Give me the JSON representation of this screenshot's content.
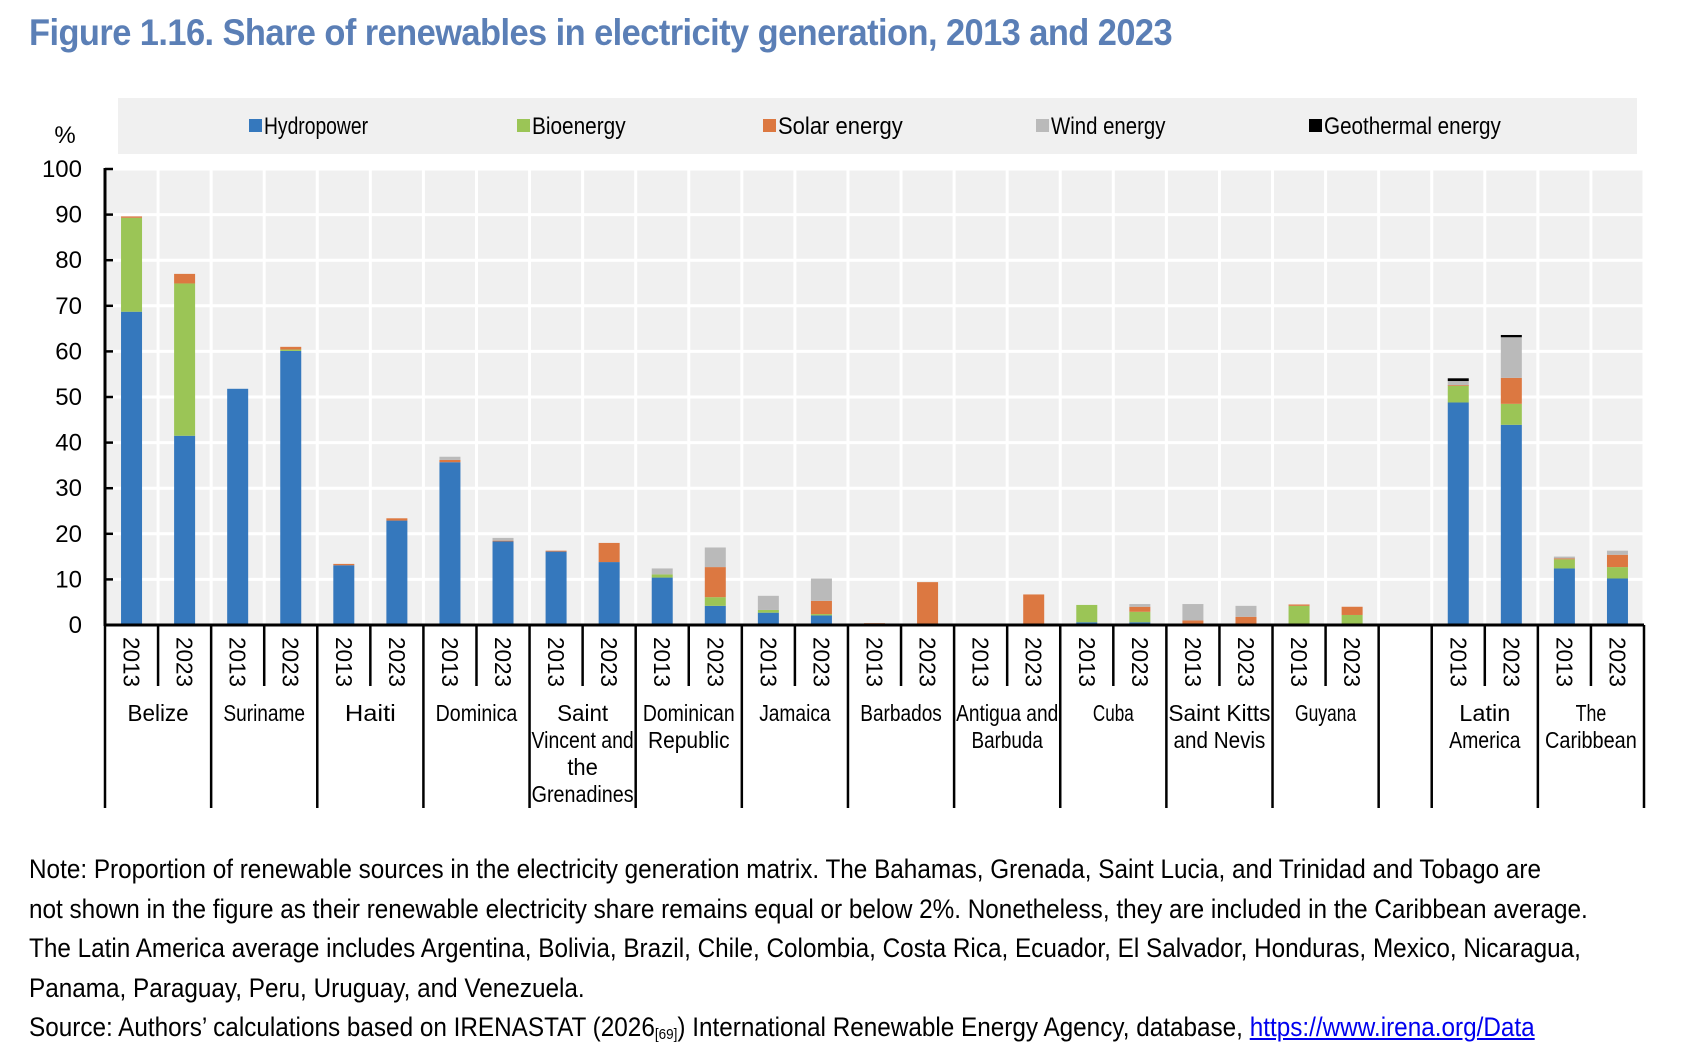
{
  "title": "Figure 1.16. Share of renewables in electricity generation, 2013 and 2023",
  "notes": {
    "line1": "Note: Proportion of renewable sources in the electricity generation matrix. The Bahamas, Grenada, Saint Lucia, and Trinidad and Tobago are",
    "line2": "not shown in the figure as their renewable electricity share remains equal or below 2%. Nonetheless, they are included in the Caribbean average.",
    "line3": "The Latin America average includes Argentina, Bolivia, Brazil, Chile, Colombia, Costa Rica, Ecuador, El Salvador, Honduras, Mexico, Nicaragua,",
    "line4": "Panama, Paraguay, Peru, Uruguay, and Venezuela.",
    "source_prefix": "Source: Authors’ calculations based on IRENASTAT (2026",
    "source_ref": "[69]",
    "source_middle": ") International Renewable Energy Agency, database, ",
    "source_link": "https://www.irena.org/Data"
  },
  "chart_data": {
    "type": "bar",
    "stacked": true,
    "title": "Figure 1.16. Share of renewables in electricity generation, 2013 and 2023",
    "ylabel": "%",
    "xlabel": "",
    "ylim": [
      0,
      100
    ],
    "yticks": [
      0,
      10,
      20,
      30,
      40,
      50,
      60,
      70,
      80,
      90,
      100
    ],
    "grid": true,
    "legend_position": "top",
    "series": [
      {
        "name": "Hydropower",
        "color": "#3578bd"
      },
      {
        "name": "Bioenergy",
        "color": "#9bc556"
      },
      {
        "name": "Solar energy",
        "color": "#dc7841"
      },
      {
        "name": "Wind energy",
        "color": "#bababa"
      },
      {
        "name": "Geothermal energy",
        "color": "#000000"
      }
    ],
    "groups": [
      {
        "label": [
          "Belize"
        ],
        "bars": [
          {
            "year": "2013",
            "values": [
              68.7,
              20.6,
              0.3,
              0,
              0
            ]
          },
          {
            "year": "2023",
            "values": [
              41.5,
              33.4,
              2.1,
              0,
              0
            ]
          }
        ]
      },
      {
        "label": [
          "Suriname"
        ],
        "bars": [
          {
            "year": "2013",
            "values": [
              51.8,
              0,
              0,
              0,
              0
            ]
          },
          {
            "year": "2023",
            "values": [
              60.1,
              0.3,
              0.6,
              0,
              0
            ]
          }
        ]
      },
      {
        "label": [
          "Haiti"
        ],
        "bars": [
          {
            "year": "2013",
            "values": [
              13.1,
              0,
              0.3,
              0,
              0
            ]
          },
          {
            "year": "2023",
            "values": [
              22.9,
              0,
              0.5,
              0,
              0
            ]
          }
        ]
      },
      {
        "label": [
          "Dominica"
        ],
        "bars": [
          {
            "year": "2013",
            "values": [
              35.7,
              0,
              0.5,
              0.7,
              0
            ]
          },
          {
            "year": "2023",
            "values": [
              18.4,
              0,
              0.1,
              0.6,
              0
            ]
          }
        ]
      },
      {
        "label": [
          "Saint",
          "Vincent and",
          "the",
          "Grenadines"
        ],
        "bars": [
          {
            "year": "2013",
            "values": [
              16.1,
              0,
              0.2,
              0,
              0
            ]
          },
          {
            "year": "2023",
            "values": [
              13.8,
              0,
              4.2,
              0,
              0
            ]
          }
        ]
      },
      {
        "label": [
          "Dominican",
          "Republic"
        ],
        "bars": [
          {
            "year": "2013",
            "values": [
              10.4,
              0.7,
              0,
              1.3,
              0
            ]
          },
          {
            "year": "2023",
            "values": [
              4.2,
              1.9,
              6.6,
              4.3,
              0
            ]
          }
        ]
      },
      {
        "label": [
          "Jamaica"
        ],
        "bars": [
          {
            "year": "2013",
            "values": [
              2.7,
              0.6,
              0,
              3.1,
              0
            ]
          },
          {
            "year": "2023",
            "values": [
              2.1,
              0.3,
              2.9,
              4.9,
              0
            ]
          }
        ]
      },
      {
        "label": [
          "Barbados"
        ],
        "bars": [
          {
            "year": "2013",
            "values": [
              0,
              0,
              0.4,
              0,
              0
            ]
          },
          {
            "year": "2023",
            "values": [
              0,
              0,
              9.4,
              0,
              0
            ]
          }
        ]
      },
      {
        "label": [
          "Antigua and",
          "Barbuda"
        ],
        "bars": [
          {
            "year": "2013",
            "values": [
              0,
              0,
              0,
              0,
              0
            ]
          },
          {
            "year": "2023",
            "values": [
              0,
              0,
              6.7,
              0,
              0
            ]
          }
        ]
      },
      {
        "label": [
          "Cuba"
        ],
        "bars": [
          {
            "year": "2013",
            "values": [
              0.6,
              3.8,
              0,
              0,
              0
            ]
          },
          {
            "year": "2023",
            "values": [
              0.6,
              2.3,
              1.1,
              0.6,
              0
            ]
          }
        ]
      },
      {
        "label": [
          "Saint Kitts",
          "and Nevis"
        ],
        "bars": [
          {
            "year": "2013",
            "values": [
              0,
              0,
              1.0,
              3.6,
              0
            ]
          },
          {
            "year": "2023",
            "values": [
              0,
              0,
              1.8,
              2.4,
              0
            ]
          }
        ]
      },
      {
        "label": [
          "Guyana"
        ],
        "bars": [
          {
            "year": "2013",
            "values": [
              0.3,
              3.9,
              0.3,
              0,
              0
            ]
          },
          {
            "year": "2023",
            "values": [
              0.2,
              2.0,
              1.8,
              0,
              0
            ]
          }
        ]
      },
      {
        "label": [],
        "spacer": true,
        "bars": []
      },
      {
        "label": [
          "Latin",
          "America"
        ],
        "bars": [
          {
            "year": "2013",
            "values": [
              48.8,
              3.7,
              0.1,
              0.9,
              0.6
            ]
          },
          {
            "year": "2023",
            "values": [
              43.9,
              4.6,
              5.7,
              8.9,
              0.5
            ]
          }
        ]
      },
      {
        "label": [
          "The",
          "Caribbean"
        ],
        "bars": [
          {
            "year": "2013",
            "values": [
              12.4,
              2.0,
              0.2,
              0.4,
              0
            ]
          },
          {
            "year": "2023",
            "values": [
              10.2,
              2.5,
              2.7,
              0.9,
              0
            ]
          }
        ]
      }
    ]
  }
}
